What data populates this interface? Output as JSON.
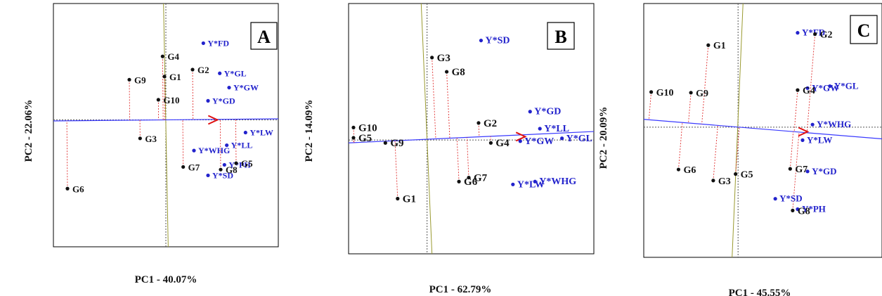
{
  "chart_data": [
    {
      "type": "scatter",
      "panel": "A",
      "xlabel": "PC1 - 40.07%",
      "ylabel": "PC2 - 22.06%",
      "xlim": [
        -2.4,
        2.4
      ],
      "ylim": [
        -2.4,
        2.2
      ],
      "axis_line": {
        "x0": -2.4,
        "y0": -0.02,
        "x1": 2.4,
        "y1": 0.02
      },
      "vline_x": 0.0,
      "tilted_line": {
        "x0": -0.05,
        "y0": 2.2,
        "x1": 0.05,
        "y1": -2.4
      },
      "arrow": {
        "x": 1.1,
        "y": 0.0
      },
      "genotypes": [
        {
          "label": "G4",
          "x": -0.07,
          "y": 1.2
        },
        {
          "label": "G1",
          "x": -0.03,
          "y": 0.82
        },
        {
          "label": "G2",
          "x": 0.57,
          "y": 0.95
        },
        {
          "label": "G9",
          "x": -0.78,
          "y": 0.76
        },
        {
          "label": "G10",
          "x": -0.16,
          "y": 0.38
        },
        {
          "label": "G3",
          "x": -0.55,
          "y": -0.35
        },
        {
          "label": "G7",
          "x": 0.37,
          "y": -0.89
        },
        {
          "label": "G8",
          "x": 1.17,
          "y": -0.94
        },
        {
          "label": "G5",
          "x": 1.5,
          "y": -0.82
        },
        {
          "label": "G6",
          "x": -2.1,
          "y": -1.3
        }
      ],
      "environments": [
        {
          "label": "Y*FD",
          "x": 0.8,
          "y": 1.45
        },
        {
          "label": "Y*GL",
          "x": 1.15,
          "y": 0.88
        },
        {
          "label": "Y*GW",
          "x": 1.35,
          "y": 0.61
        },
        {
          "label": "Y*GD",
          "x": 0.9,
          "y": 0.36
        },
        {
          "label": "Y*LW",
          "x": 1.7,
          "y": -0.24
        },
        {
          "label": "Y*LL",
          "x": 1.3,
          "y": -0.48
        },
        {
          "label": "Y*WHG",
          "x": 0.6,
          "y": -0.58
        },
        {
          "label": "Y*PH",
          "x": 1.25,
          "y": -0.85
        },
        {
          "label": "Y*SD",
          "x": 0.9,
          "y": -1.05
        }
      ]
    },
    {
      "type": "scatter",
      "panel": "B",
      "xlabel": "PC1 - 62.79%",
      "ylabel": "PC2 - 14.09%",
      "xlim": [
        -1.6,
        3.4
      ],
      "ylim": [
        -2.0,
        2.4
      ],
      "axis_line": {
        "x0": -1.6,
        "y0": -0.05,
        "x1": 3.4,
        "y1": 0.15
      },
      "vline_x": 0.0,
      "tilted_line": {
        "x0": -0.12,
        "y0": 2.4,
        "x1": 0.1,
        "y1": -2.0
      },
      "arrow": {
        "x": 2.0,
        "y": 0.06
      },
      "genotypes": [
        {
          "label": "G3",
          "x": 0.1,
          "y": 1.45
        },
        {
          "label": "G8",
          "x": 0.4,
          "y": 1.2
        },
        {
          "label": "G2",
          "x": 1.05,
          "y": 0.3
        },
        {
          "label": "G10",
          "x": -1.5,
          "y": 0.22
        },
        {
          "label": "G5",
          "x": -1.5,
          "y": 0.04
        },
        {
          "label": "G9",
          "x": -0.85,
          "y": -0.05
        },
        {
          "label": "G4",
          "x": 1.3,
          "y": -0.05
        },
        {
          "label": "G7",
          "x": 0.85,
          "y": -0.66
        },
        {
          "label": "G6",
          "x": 0.65,
          "y": -0.73
        },
        {
          "label": "G1",
          "x": -0.6,
          "y": -1.03
        }
      ],
      "environments": [
        {
          "label": "Y*SD",
          "x": 1.1,
          "y": 1.75
        },
        {
          "label": "Y*GD",
          "x": 2.1,
          "y": 0.5
        },
        {
          "label": "Y*LL",
          "x": 2.3,
          "y": 0.2
        },
        {
          "label": "Y*GL",
          "x": 2.75,
          "y": 0.03
        },
        {
          "label": "Y*GW",
          "x": 1.9,
          "y": -0.02
        },
        {
          "label": "Y*WHG",
          "x": 2.2,
          "y": -0.73
        },
        {
          "label": "Y*LW",
          "x": 1.75,
          "y": -0.78
        }
      ]
    },
    {
      "type": "scatter",
      "panel": "C",
      "xlabel": "PC1 - 45.55%",
      "ylabel": "PC2 - 20.09%",
      "xlim": [
        -1.9,
        2.9
      ],
      "ylim": [
        -2.0,
        1.9
      ],
      "axis_line": {
        "x0": -1.9,
        "y0": 0.12,
        "x1": 2.9,
        "y1": -0.18
      },
      "vline_x": 0.0,
      "tilted_line": {
        "x0": 0.1,
        "y0": 1.9,
        "x1": -0.12,
        "y1": -2.0
      },
      "arrow": {
        "x": 1.4,
        "y": -0.07
      },
      "genotypes": [
        {
          "label": "G1",
          "x": -0.6,
          "y": 1.26
        },
        {
          "label": "G2",
          "x": 1.55,
          "y": 1.43
        },
        {
          "label": "G10",
          "x": -1.75,
          "y": 0.54
        },
        {
          "label": "G9",
          "x": -0.95,
          "y": 0.53
        },
        {
          "label": "G4",
          "x": 1.2,
          "y": 0.57
        },
        {
          "label": "G6",
          "x": -1.2,
          "y": -0.65
        },
        {
          "label": "G3",
          "x": -0.5,
          "y": -0.82
        },
        {
          "label": "G5",
          "x": -0.05,
          "y": -0.72
        },
        {
          "label": "G7",
          "x": 1.05,
          "y": -0.64
        },
        {
          "label": "G8",
          "x": 1.1,
          "y": -1.28
        }
      ],
      "environments": [
        {
          "label": "Y*FD",
          "x": 1.2,
          "y": 1.45
        },
        {
          "label": "Y*GL",
          "x": 1.85,
          "y": 0.63
        },
        {
          "label": "Y*GW",
          "x": 1.4,
          "y": 0.6
        },
        {
          "label": "Y*WHG",
          "x": 1.5,
          "y": 0.04
        },
        {
          "label": "Y*LW",
          "x": 1.3,
          "y": -0.2
        },
        {
          "label": "Y*GD",
          "x": 1.4,
          "y": -0.68
        },
        {
          "label": "Y*SD",
          "x": 0.75,
          "y": -1.1
        },
        {
          "label": "Y*PH",
          "x": 1.2,
          "y": -1.26
        }
      ]
    }
  ],
  "panel_letters": [
    "A",
    "B",
    "C"
  ],
  "colors": {
    "genotype": "#111111",
    "environment": "#2222cc",
    "projection": "#e03030",
    "axis_line": "#3a3aff",
    "arrow": "#e01010",
    "tilted_line": "#9a9a30",
    "dotted_line": "#555555",
    "frame": "#000000"
  }
}
